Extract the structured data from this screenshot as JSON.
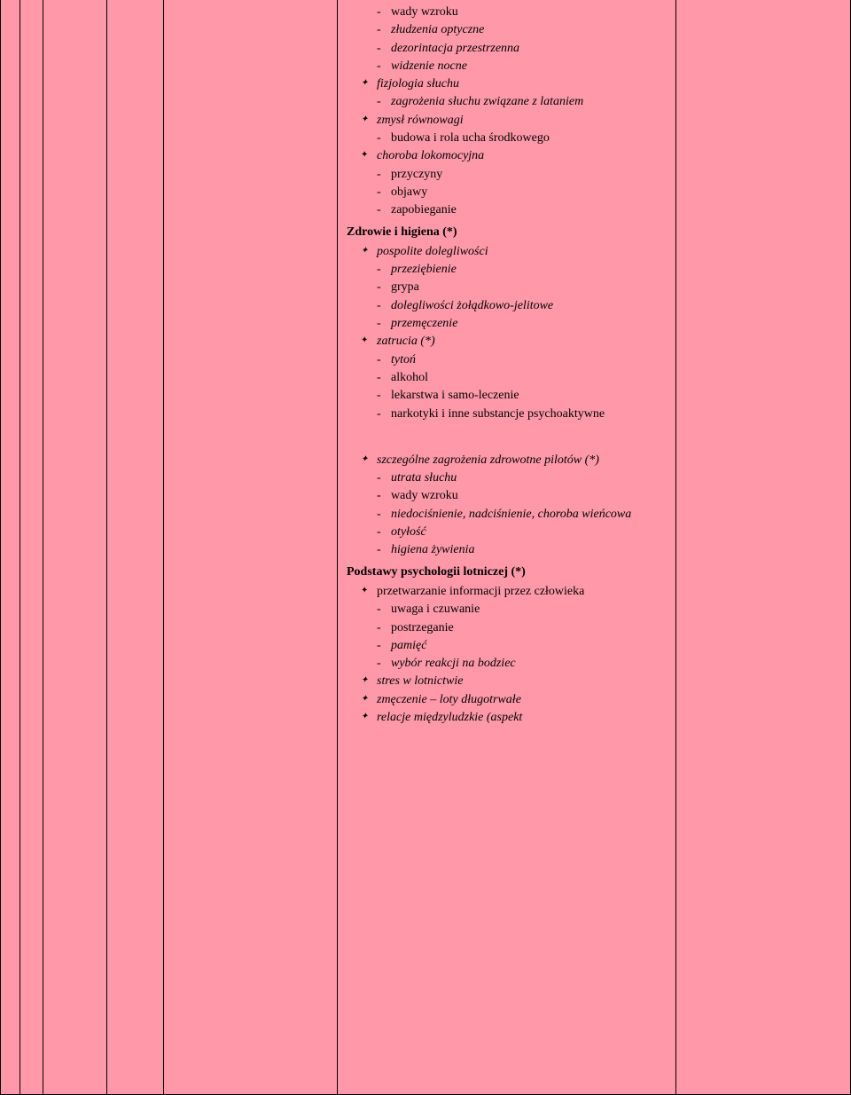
{
  "col_f": {
    "top_items": [
      "wady wzroku",
      "złudzenia optyczne",
      "dezorintacja przestrzenna",
      "widzenie nocne"
    ],
    "fizjologia_label": "fizjologia słuchu",
    "fizjologia_items": [
      "zagrożenia słuchu związane z lataniem"
    ],
    "zmysl_label": "zmysł równowagi",
    "zmysl_items": [
      "budowa i rola ucha środkowego"
    ],
    "choroba_label": "choroba lokomocyjna",
    "choroba_items": [
      "przyczyny",
      "objawy",
      "zapobieganie"
    ],
    "zdrowie_heading": "Zdrowie i higiena (*)",
    "pospolite_label": "pospolite dolegliwości",
    "pospolite_items": [
      "przeziębienie",
      "grypa",
      "dolegliwości żołądkowo-jelitowe",
      "przemęczenie"
    ],
    "zatrucia_label": "zatrucia (*)",
    "zatrucia_items": [
      "tytoń",
      "alkohol",
      "lekarstwa i samo-leczenie",
      "narkotyki i inne substancje psychoaktywne"
    ],
    "szczegolne_label": "szczególne zagrożenia zdrowotne pilotów (*)",
    "szczegolne_items": [
      "utrata słuchu",
      "wady wzroku",
      "niedociśnienie, nadciśnienie, choroba wieńcowa",
      "otyłość",
      "higiena żywienia"
    ],
    "psych_heading": "Podstawy psychologii lotniczej (*)",
    "przetwarzanie_label": "przetwarzanie informacji przez człowieka",
    "przetwarzanie_items": [
      "uwaga i czuwanie",
      "postrzeganie",
      "pamięć",
      "wybór reakcji na bodziec"
    ],
    "tail_bullets": [
      "stres w lotnictwie",
      "zmęczenie – loty długotrwałe",
      "relacje międzyludzkie (aspekt"
    ]
  }
}
